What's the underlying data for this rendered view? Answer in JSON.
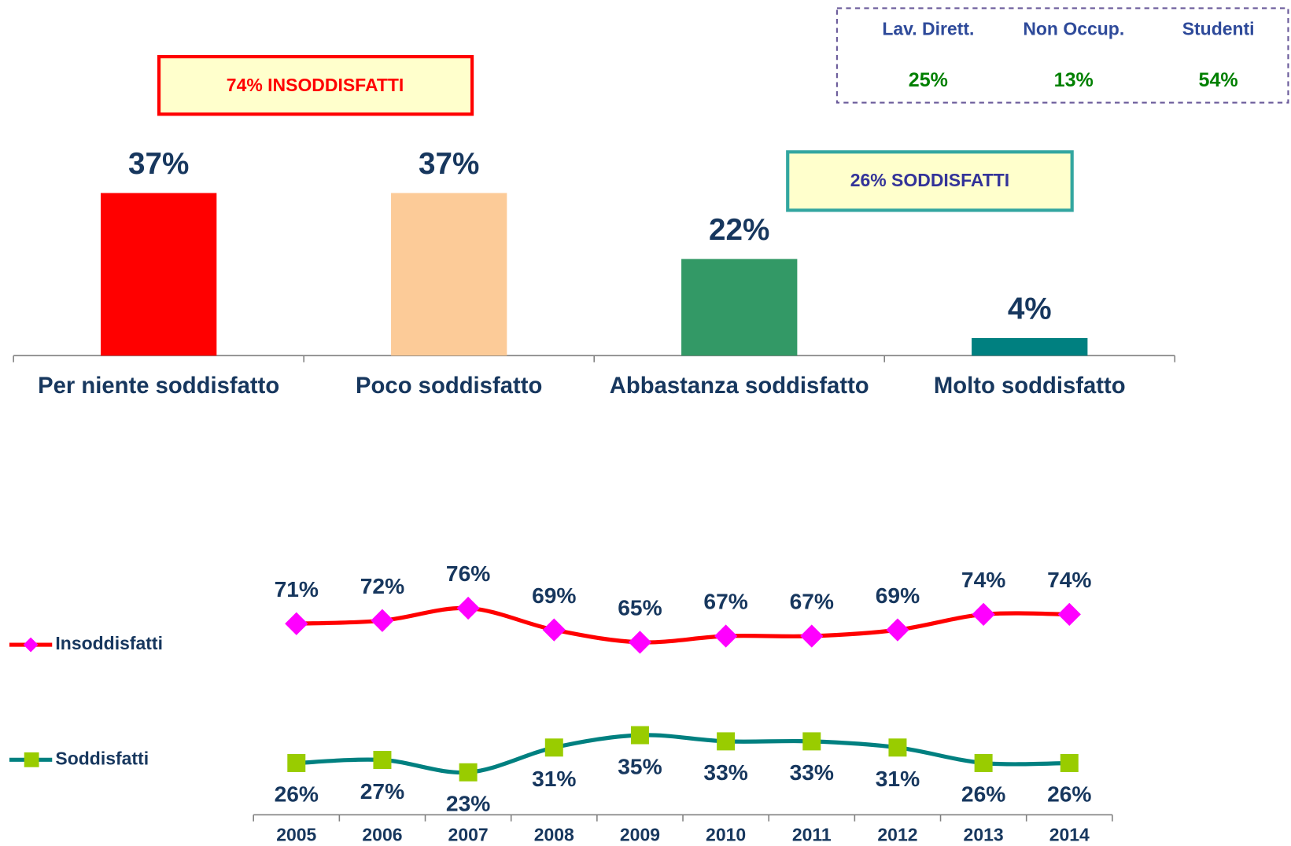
{
  "chart_data": [
    {
      "type": "bar",
      "categories": [
        "Per niente soddisfatto",
        "Poco soddisfatto",
        "Abbastanza soddisfatto",
        "Molto soddisfatto"
      ],
      "values": [
        37,
        37,
        22,
        4
      ],
      "value_labels": [
        "37%",
        "37%",
        "22%",
        "4%"
      ],
      "colors": [
        "#ff0000",
        "#fccb98",
        "#339966",
        "#008080"
      ]
    },
    {
      "type": "line",
      "categories": [
        "2005",
        "2006",
        "2007",
        "2008",
        "2009",
        "2010",
        "2011",
        "2012",
        "2013",
        "2014"
      ],
      "legend": "left",
      "series": [
        {
          "name": "Insoddisfatti",
          "color": "#ff0000",
          "marker_color": "#ff00ff",
          "marker": "diamond",
          "values": [
            71,
            72,
            76,
            69,
            65,
            67,
            67,
            69,
            74,
            74
          ],
          "value_labels": [
            "71%",
            "72%",
            "76%",
            "69%",
            "65%",
            "67%",
            "67%",
            "69%",
            "74%",
            "74%"
          ]
        },
        {
          "name": "Soddisfatti",
          "color": "#008080",
          "marker_color": "#99cc00",
          "marker": "square",
          "values": [
            26,
            27,
            23,
            31,
            35,
            33,
            33,
            31,
            26,
            26
          ],
          "value_labels": [
            "26%",
            "27%",
            "23%",
            "31%",
            "35%",
            "33%",
            "33%",
            "31%",
            "26%",
            "26%"
          ]
        }
      ]
    }
  ],
  "annotations": [
    "74% INSODDISFATTI",
    "26% SODDISFATTI"
  ],
  "table": {
    "columns": [
      "Lav. Dirett.",
      "Non Occup.",
      "Studenti"
    ],
    "rows": [
      [
        "25%",
        "13%",
        "54%"
      ]
    ]
  }
}
